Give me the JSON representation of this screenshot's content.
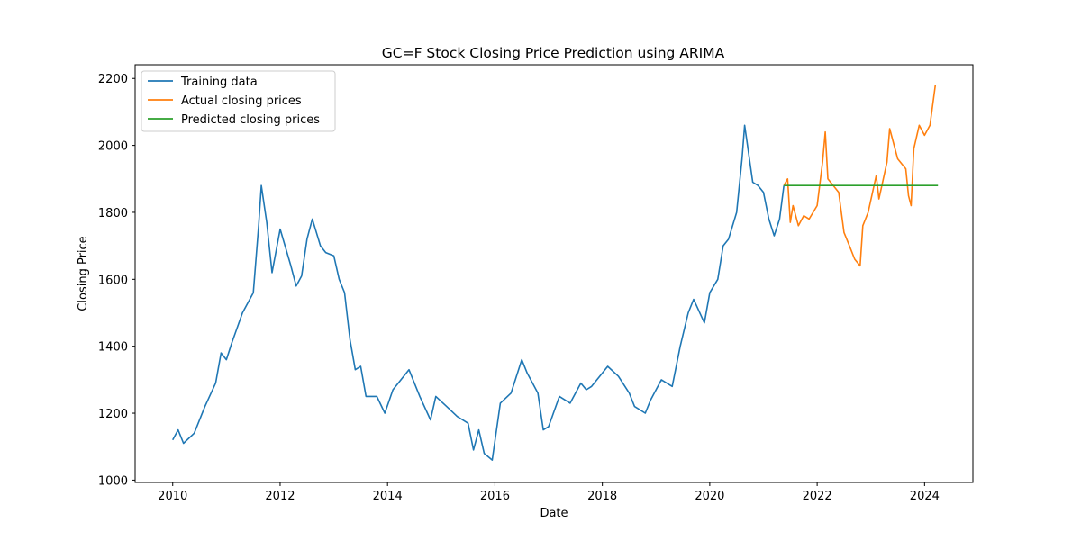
{
  "chart_data": {
    "type": "line",
    "title": "GC=F Stock Closing Price Prediction using ARIMA",
    "xlabel": "Date",
    "ylabel": "Closing Price",
    "xlim": [
      2009.3,
      2024.9
    ],
    "ylim": [
      993,
      2241
    ],
    "x_ticks": [
      2010,
      2012,
      2014,
      2016,
      2018,
      2020,
      2022,
      2024
    ],
    "x_tick_labels": [
      "2010",
      "2012",
      "2014",
      "2016",
      "2018",
      "2020",
      "2022",
      "2024"
    ],
    "y_ticks": [
      1000,
      1200,
      1400,
      1600,
      1800,
      2000,
      2200
    ],
    "y_tick_labels": [
      "1000",
      "1200",
      "1400",
      "1600",
      "1800",
      "2000",
      "2200"
    ],
    "grid": false,
    "legend_position": "upper-left",
    "series": [
      {
        "name": "Training data",
        "color": "#1f77b4",
        "x": [
          2010.0,
          2010.1,
          2010.2,
          2010.4,
          2010.6,
          2010.8,
          2010.9,
          2011.0,
          2011.1,
          2011.3,
          2011.5,
          2011.6,
          2011.65,
          2011.75,
          2011.85,
          2012.0,
          2012.2,
          2012.3,
          2012.4,
          2012.5,
          2012.6,
          2012.75,
          2012.85,
          2013.0,
          2013.1,
          2013.2,
          2013.3,
          2013.4,
          2013.5,
          2013.6,
          2013.8,
          2013.95,
          2014.1,
          2014.2,
          2014.4,
          2014.6,
          2014.8,
          2014.9,
          2015.1,
          2015.3,
          2015.5,
          2015.6,
          2015.7,
          2015.8,
          2015.95,
          2016.1,
          2016.3,
          2016.5,
          2016.6,
          2016.8,
          2016.9,
          2017.0,
          2017.2,
          2017.4,
          2017.6,
          2017.7,
          2017.8,
          2018.0,
          2018.1,
          2018.3,
          2018.5,
          2018.6,
          2018.8,
          2018.9,
          2019.1,
          2019.3,
          2019.45,
          2019.6,
          2019.7,
          2019.9,
          2020.0,
          2020.15,
          2020.25,
          2020.35,
          2020.5,
          2020.6,
          2020.65,
          2020.8,
          2020.9,
          2021.0,
          2021.1,
          2021.2,
          2021.3,
          2021.38
        ],
        "values": [
          1120,
          1150,
          1110,
          1140,
          1220,
          1290,
          1380,
          1360,
          1410,
          1500,
          1560,
          1760,
          1880,
          1770,
          1620,
          1750,
          1640,
          1580,
          1610,
          1720,
          1780,
          1700,
          1680,
          1670,
          1600,
          1560,
          1420,
          1330,
          1340,
          1250,
          1250,
          1200,
          1270,
          1290,
          1330,
          1250,
          1180,
          1250,
          1220,
          1190,
          1170,
          1090,
          1150,
          1080,
          1060,
          1230,
          1260,
          1360,
          1320,
          1260,
          1150,
          1160,
          1250,
          1230,
          1290,
          1270,
          1280,
          1320,
          1340,
          1310,
          1260,
          1220,
          1200,
          1240,
          1300,
          1280,
          1400,
          1500,
          1540,
          1470,
          1560,
          1600,
          1700,
          1720,
          1800,
          1960,
          2060,
          1890,
          1880,
          1860,
          1780,
          1730,
          1780,
          1880
        ]
      },
      {
        "name": "Actual closing prices",
        "color": "#ff7f0e",
        "x": [
          2021.38,
          2021.45,
          2021.5,
          2021.55,
          2021.65,
          2021.75,
          2021.85,
          2022.0,
          2022.1,
          2022.15,
          2022.2,
          2022.3,
          2022.4,
          2022.5,
          2022.6,
          2022.7,
          2022.8,
          2022.85,
          2022.95,
          2023.1,
          2023.15,
          2023.3,
          2023.35,
          2023.5,
          2023.65,
          2023.7,
          2023.75,
          2023.8,
          2023.9,
          2024.0,
          2024.1,
          2024.2
        ],
        "values": [
          1880,
          1900,
          1770,
          1820,
          1760,
          1790,
          1780,
          1820,
          1950,
          2040,
          1900,
          1880,
          1860,
          1740,
          1700,
          1660,
          1640,
          1760,
          1800,
          1910,
          1840,
          1950,
          2050,
          1960,
          1930,
          1850,
          1820,
          1990,
          2060,
          2030,
          2060,
          2180
        ]
      },
      {
        "name": "Predicted closing prices",
        "color": "#2ca02c",
        "x": [
          2021.38,
          2024.25
        ],
        "values": [
          1880,
          1880
        ]
      }
    ]
  }
}
